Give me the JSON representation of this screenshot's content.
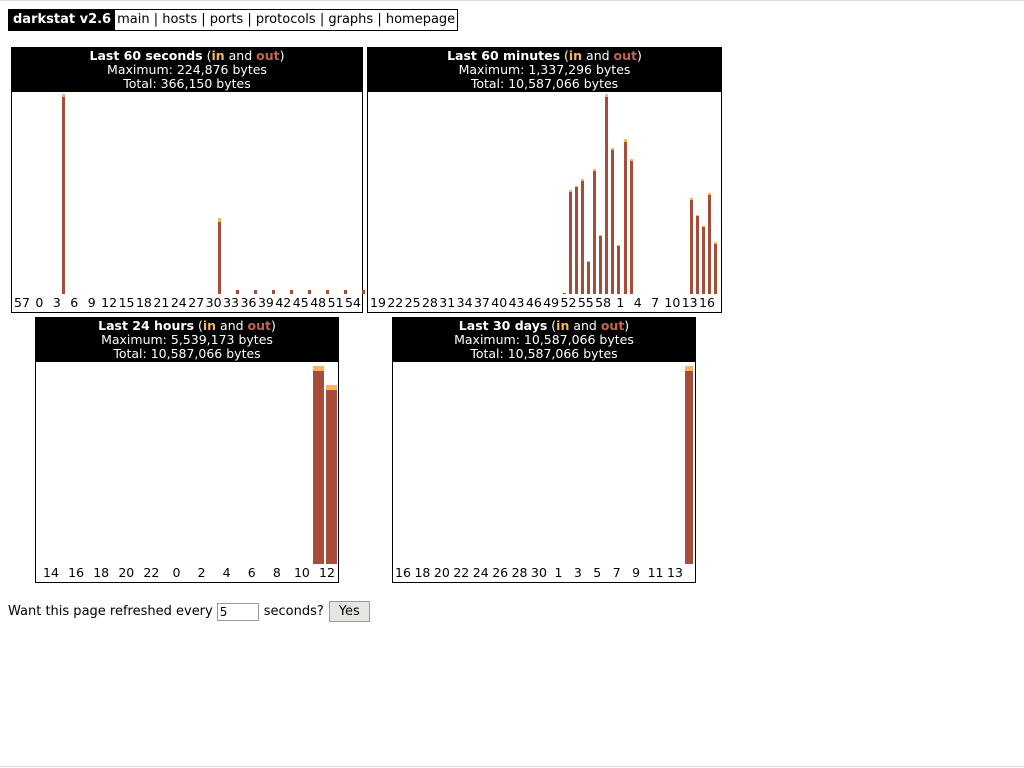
{
  "nav": {
    "brand": "darkstat v2.6",
    "links": [
      "main",
      "hosts",
      "ports",
      "protocols",
      "graphs",
      "homepage"
    ]
  },
  "colors": {
    "in": "#f5b75a",
    "out": "#a84c3a"
  },
  "graphs": [
    {
      "title": "Last 60 seconds",
      "maximum": "Maximum: 224,876 bytes",
      "total": "Total: 366,150 bytes"
    },
    {
      "title": "Last 60 minutes",
      "maximum": "Maximum: 1,337,296 bytes",
      "total": "Total: 10,587,066 bytes"
    },
    {
      "title": "Last 24 hours",
      "maximum": "Maximum: 5,539,173 bytes",
      "total": "Total: 10,587,066 bytes"
    },
    {
      "title": "Last 30 days",
      "maximum": "Maximum: 10,587,066 bytes",
      "total": "Total: 10,587,066 bytes"
    }
  ],
  "legend": {
    "open": " (",
    "in": "in",
    "and": " and ",
    "out": "out",
    "close": ")"
  },
  "chart_data": [
    {
      "type": "bar",
      "title": "Last 60 seconds (in and out)",
      "tick_labels": [
        "57",
        "0",
        "3",
        "6",
        "9",
        "12",
        "15",
        "18",
        "21",
        "24",
        "27",
        "30",
        "33",
        "36",
        "39",
        "42",
        "45",
        "48",
        "51",
        "54"
      ],
      "series": [
        {
          "name": "in",
          "values": []
        },
        {
          "name": "out",
          "values": []
        }
      ],
      "stacked": true,
      "bars": [
        {
          "index": 9,
          "in": 0.015,
          "out": 0.985
        },
        {
          "index": 35,
          "in": 0.02,
          "out": 0.36
        },
        {
          "index": 38,
          "in": 0.0,
          "out": 0.02
        },
        {
          "index": 41,
          "in": 0.0,
          "out": 0.02
        },
        {
          "index": 44,
          "in": 0.0,
          "out": 0.02
        },
        {
          "index": 47,
          "in": 0.0,
          "out": 0.02
        },
        {
          "index": 50,
          "in": 0.0,
          "out": 0.02
        },
        {
          "index": 53,
          "in": 0.0,
          "out": 0.02
        },
        {
          "index": 56,
          "in": 0.0,
          "out": 0.02
        },
        {
          "index": 59,
          "in": 0.0,
          "out": 0.02
        }
      ],
      "slots": 60
    },
    {
      "type": "bar",
      "title": "Last 60 minutes (in and out)",
      "tick_labels": [
        "19",
        "22",
        "25",
        "28",
        "31",
        "34",
        "37",
        "40",
        "43",
        "46",
        "49",
        "52",
        "55",
        "58",
        "1",
        "4",
        "7",
        "10",
        "13",
        "16"
      ],
      "series": [
        {
          "name": "in",
          "values": []
        },
        {
          "name": "out",
          "values": []
        }
      ],
      "stacked": true,
      "bars": [
        {
          "index": 34,
          "in": 0.0,
          "out": 0.005
        },
        {
          "index": 35,
          "in": 0.01,
          "out": 0.51
        },
        {
          "index": 36,
          "in": 0.005,
          "out": 0.535
        },
        {
          "index": 37,
          "in": 0.01,
          "out": 0.565
        },
        {
          "index": 38,
          "in": 0.005,
          "out": 0.16
        },
        {
          "index": 39,
          "in": 0.01,
          "out": 0.615
        },
        {
          "index": 40,
          "in": 0.005,
          "out": 0.29
        },
        {
          "index": 41,
          "in": 0.015,
          "out": 0.985
        },
        {
          "index": 42,
          "in": 0.01,
          "out": 0.72
        },
        {
          "index": 43,
          "in": 0.005,
          "out": 0.24
        },
        {
          "index": 44,
          "in": 0.015,
          "out": 0.76
        },
        {
          "index": 45,
          "in": 0.01,
          "out": 0.665
        },
        {
          "index": 55,
          "in": 0.01,
          "out": 0.47
        },
        {
          "index": 56,
          "in": 0.005,
          "out": 0.39
        },
        {
          "index": 57,
          "in": 0.005,
          "out": 0.335
        },
        {
          "index": 58,
          "in": 0.01,
          "out": 0.495
        },
        {
          "index": 59,
          "in": 0.01,
          "out": 0.25
        }
      ],
      "slots": 60
    },
    {
      "type": "bar",
      "title": "Last 24 hours (in and out)",
      "tick_labels": [
        "14",
        "16",
        "18",
        "20",
        "22",
        "0",
        "2",
        "4",
        "6",
        "8",
        "10",
        "12"
      ],
      "series": [
        {
          "name": "in",
          "values": []
        },
        {
          "name": "out",
          "values": []
        }
      ],
      "stacked": true,
      "bars": [
        {
          "index": 22,
          "in": 0.025,
          "out": 0.965
        },
        {
          "index": 23,
          "in": 0.025,
          "out": 0.87
        }
      ],
      "slots": 24
    },
    {
      "type": "bar",
      "title": "Last 30 days (in and out)",
      "tick_labels": [
        "16",
        "18",
        "20",
        "22",
        "24",
        "26",
        "28",
        "30",
        "1",
        "3",
        "5",
        "7",
        "9",
        "11",
        "13"
      ],
      "series": [
        {
          "name": "in",
          "values": []
        },
        {
          "name": "out",
          "values": []
        }
      ],
      "stacked": true,
      "bars": [
        {
          "index": 29,
          "in": 0.025,
          "out": 0.965
        }
      ],
      "slots": 30
    }
  ],
  "refresh": {
    "prefix": "Want this page refreshed every",
    "value": "5",
    "suffix": "seconds?",
    "button": "Yes"
  }
}
